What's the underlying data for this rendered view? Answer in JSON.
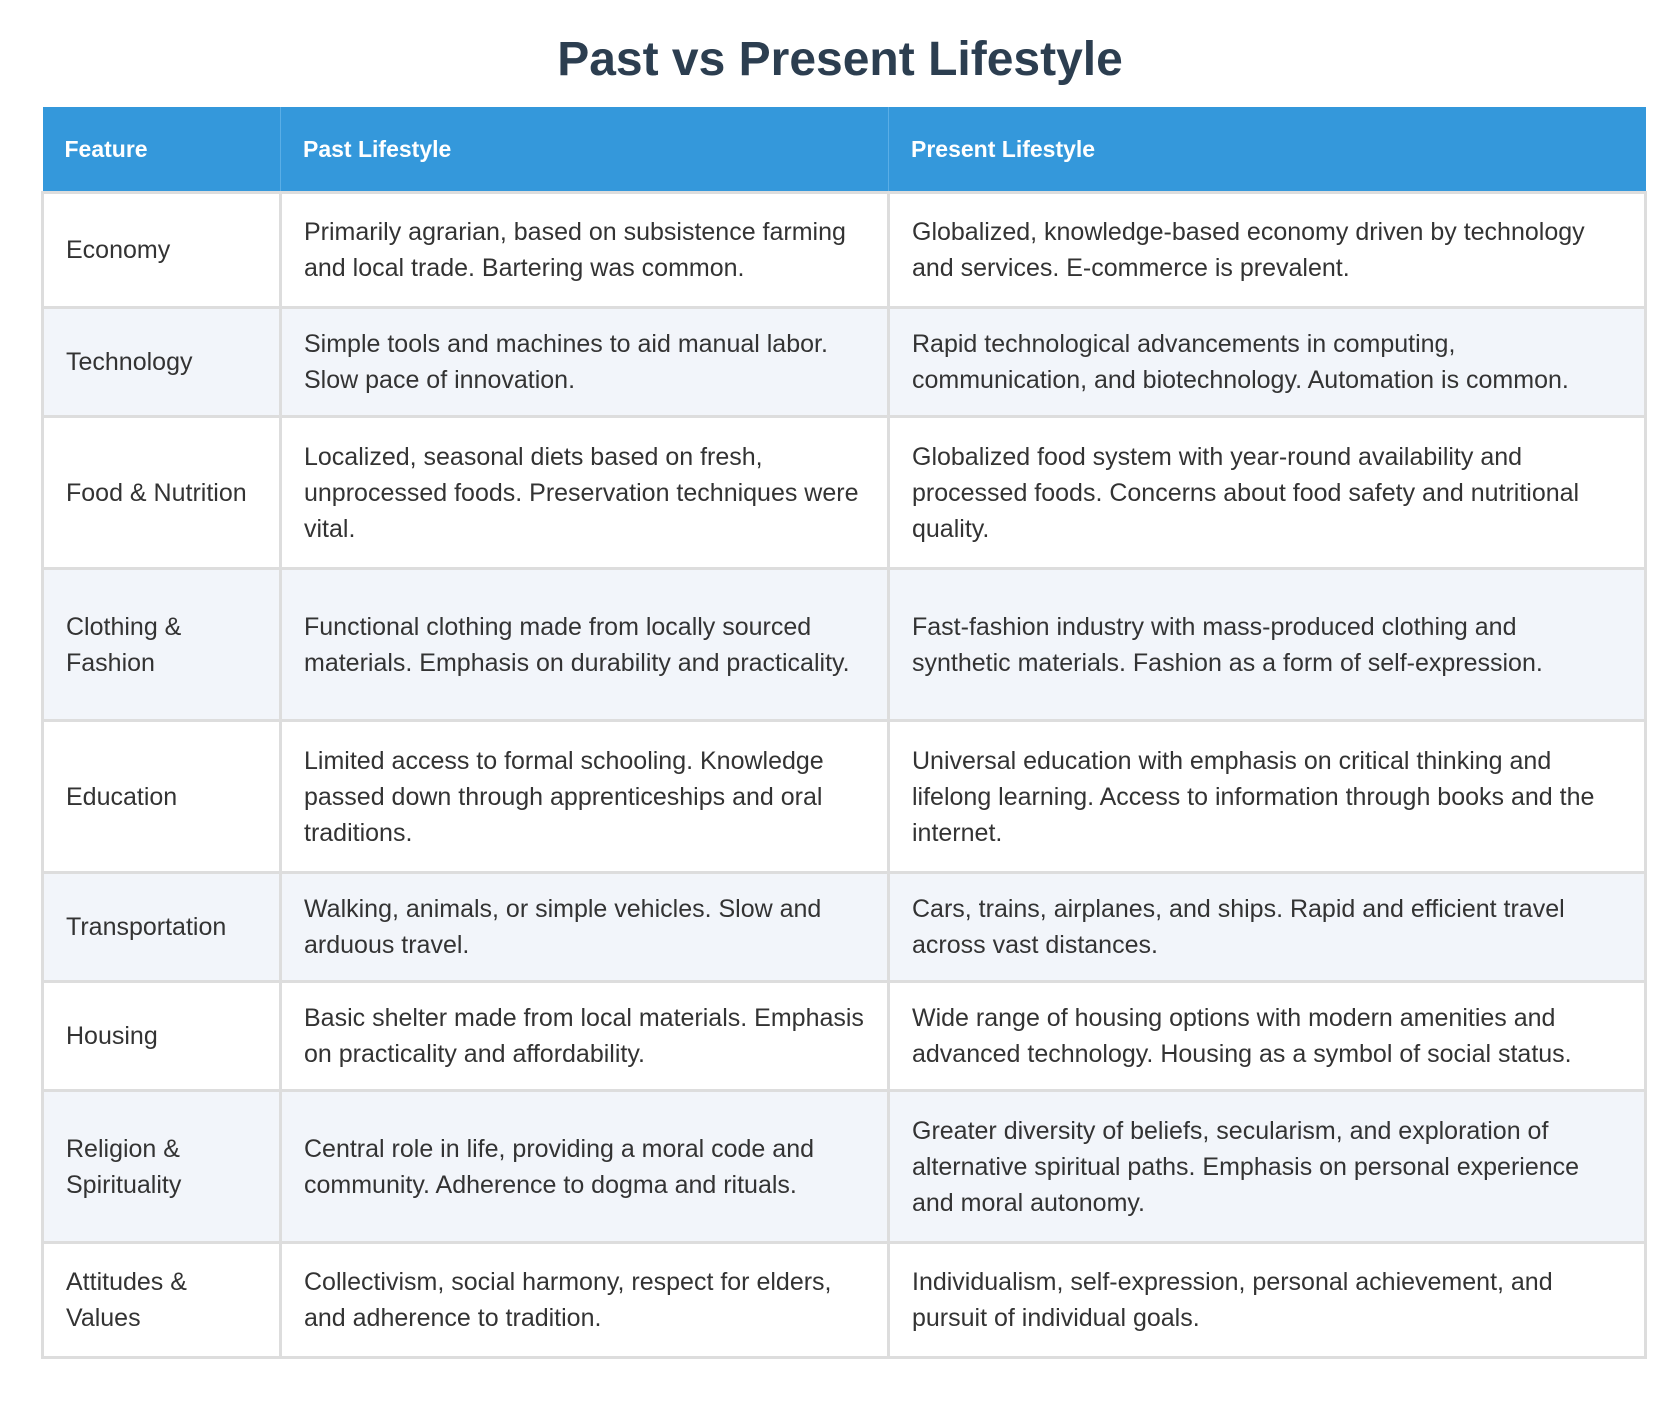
{
  "title": "Past vs Present Lifestyle",
  "headers": {
    "feature": "Feature",
    "past": "Past Lifestyle",
    "present": "Present Lifestyle"
  },
  "rows": [
    {
      "feature": "Economy",
      "past": "Primarily agrarian, based on subsistence farming and local trade. Bartering was common.",
      "present": "Globalized, knowledge-based economy driven by technology and services. E-commerce is prevalent."
    },
    {
      "feature": "Technology",
      "past": "Simple tools and machines to aid manual labor. Slow pace of innovation.",
      "present": "Rapid technological advancements in computing, communication, and biotechnology. Automation is common."
    },
    {
      "feature": "Food & Nutrition",
      "past": "Localized, seasonal diets based on fresh, unprocessed foods. Preservation techniques were vital.",
      "present": "Globalized food system with year-round availability and processed foods. Concerns about food safety and nutritional quality."
    },
    {
      "feature": "Clothing & Fashion",
      "past": "Functional clothing made from locally sourced materials. Emphasis on durability and practicality.",
      "present": "Fast-fashion industry with mass-produced clothing and synthetic materials. Fashion as a form of self-expression."
    },
    {
      "feature": "Education",
      "past": "Limited access to formal schooling. Knowledge passed down through apprenticeships and oral traditions.",
      "present": "Universal education with emphasis on critical thinking and lifelong learning. Access to information through books and the internet."
    },
    {
      "feature": "Transportation",
      "past": "Walking, animals, or simple vehicles. Slow and arduous travel.",
      "present": "Cars, trains, airplanes, and ships. Rapid and efficient travel across vast distances."
    },
    {
      "feature": "Housing",
      "past": "Basic shelter made from local materials. Emphasis on practicality and affordability.",
      "present": "Wide range of housing options with modern amenities and advanced technology. Housing as a symbol of social status."
    },
    {
      "feature": "Religion & Spirituality",
      "past": "Central role in life, providing a moral code and community. Adherence to dogma and rituals.",
      "present": "Greater diversity of beliefs, secularism, and exploration of alternative spiritual paths. Emphasis on personal experience and moral autonomy."
    },
    {
      "feature": "Attitudes & Values",
      "past": "Collectivism, social harmony, respect for elders, and adherence to tradition.",
      "present": "Individualism, self-expression, personal achievement, and pursuit of individual goals."
    }
  ],
  "colors": {
    "header_bg": "#3498db",
    "title": "#2c3e50",
    "row_alt": "#f2f5fa",
    "border": "#dddddd"
  }
}
